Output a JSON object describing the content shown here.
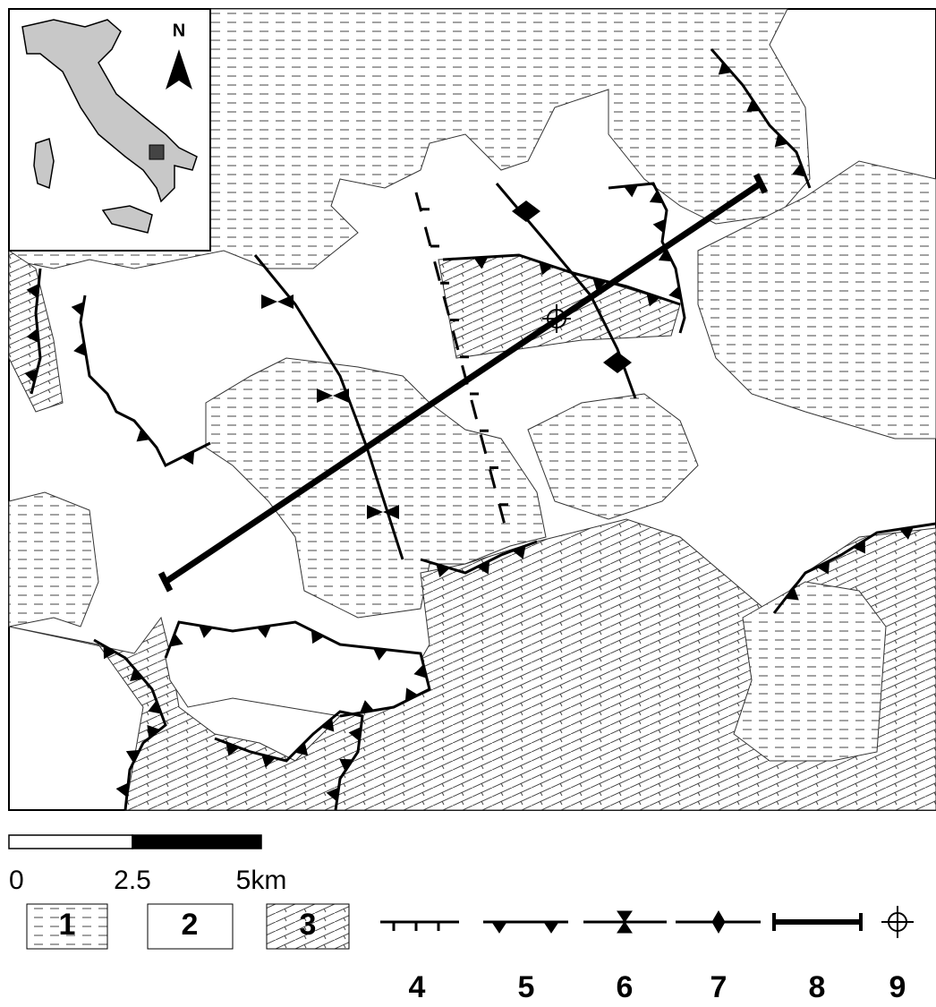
{
  "inset": {
    "north_label": "N"
  },
  "scale_bar": {
    "labels": [
      "0",
      "2.5",
      "5km"
    ]
  },
  "legend": {
    "items": [
      "1",
      "2",
      "3",
      "4",
      "5",
      "6",
      "7",
      "8",
      "9"
    ]
  }
}
